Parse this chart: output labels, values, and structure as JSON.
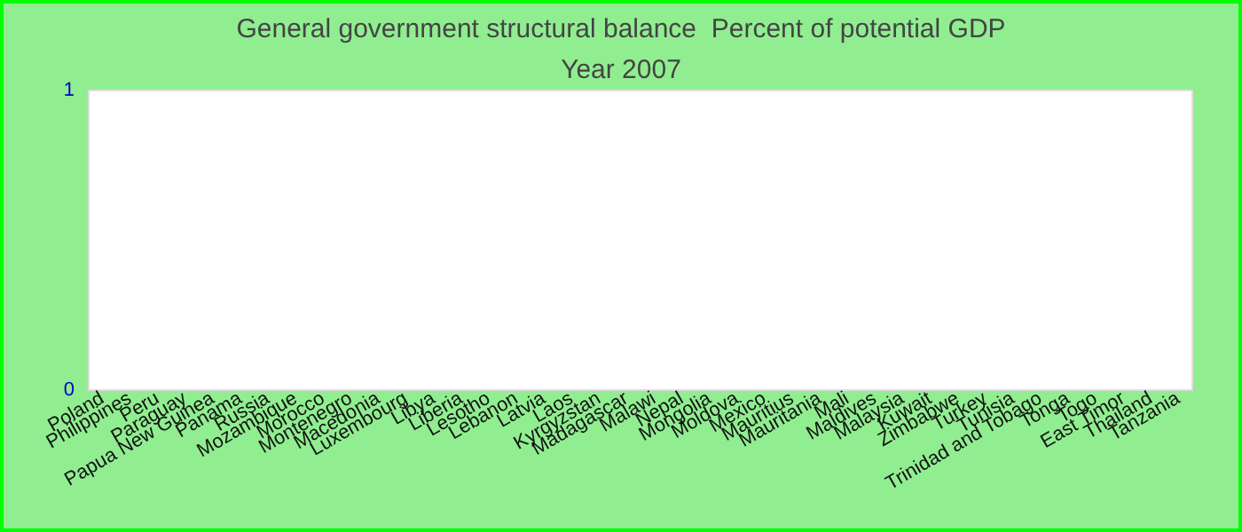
{
  "chart_data": {
    "type": "bar",
    "title": "General government structural balance  Percent of potential GDP",
    "subtitle": "Year 2007",
    "categories": [
      "Poland",
      "Philippines",
      "Peru",
      "Paraguay",
      "Papua New Guinea",
      "Panama",
      "Russia",
      "Mozambique",
      "Morocco",
      "Montenegro",
      "Macedonia",
      "Luxembourg",
      "Libya",
      "Liberia",
      "Lesotho",
      "Lebanon",
      "Latvia",
      "Laos",
      "Kyrgyzstan",
      "Madagascar",
      "Malawi",
      "Nepal",
      "Mongolia",
      "Moldova",
      "Mexico",
      "Mauritius",
      "Mauritania",
      "Mali",
      "Maldives",
      "Malaysia",
      "Kuwait",
      "Zimbabwe",
      "Turkey",
      "Tunisia",
      "Trinidad and Tobago",
      "Tonga",
      "Togo",
      "East Timor",
      "Thailand",
      "Tanzania"
    ],
    "values": [
      0,
      0,
      0,
      0,
      0,
      0,
      0,
      0,
      0,
      0,
      0,
      0,
      0,
      0,
      0,
      0,
      0,
      0,
      0,
      0,
      0,
      0,
      0,
      0,
      0,
      0,
      0,
      0,
      0,
      0,
      0,
      0,
      0,
      0,
      0,
      0,
      0,
      0,
      0,
      0
    ],
    "ylim": [
      0,
      1
    ],
    "yticks": [
      0,
      1
    ]
  }
}
